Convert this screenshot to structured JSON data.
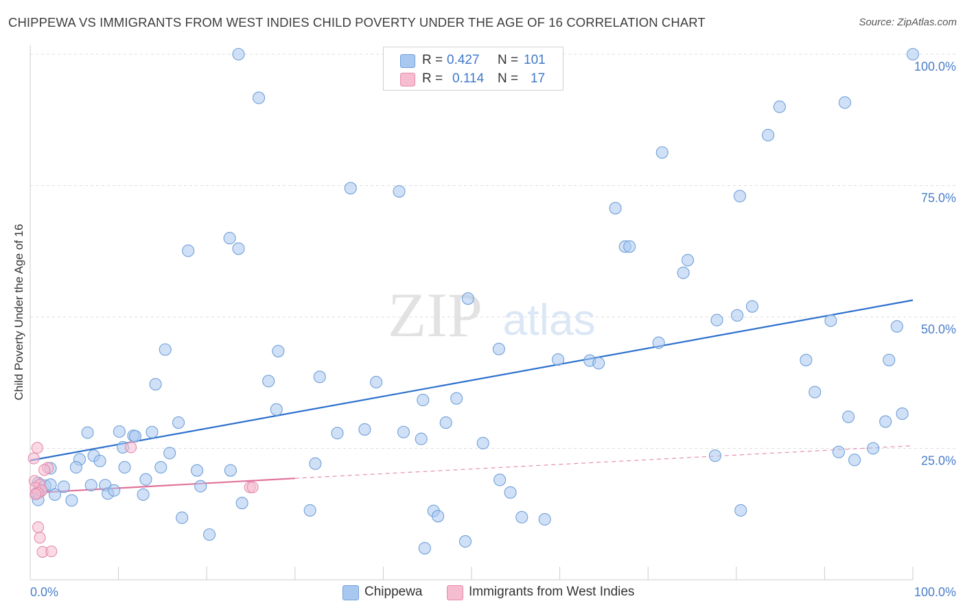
{
  "title": "CHIPPEWA VS IMMIGRANTS FROM WEST INDIES CHILD POVERTY UNDER THE AGE OF 16 CORRELATION CHART",
  "source": "Source: ZipAtlas.com",
  "watermark": {
    "zip": "ZIP",
    "atlas": "atlas"
  },
  "legend": {
    "rows": [
      {
        "r_label": "R =",
        "r_value": "0.427",
        "n_label": "N =",
        "n_value": "101"
      },
      {
        "r_label": "R =",
        "r_value": "0.114",
        "n_label": "N =",
        "n_value": "17"
      }
    ]
  },
  "bottom_legend": {
    "chippewa": "Chippewa",
    "immigrants": "Immigrants from West Indies"
  },
  "colors": {
    "chippewa_fill": "#a9c8f0",
    "chippewa_stroke": "#6f9fd8",
    "chippewa_line": "#2b6fcc",
    "immigrants_fill": "#f6bcd0",
    "immigrants_stroke": "#e68aab",
    "immigrants_line": "#e0709a",
    "axis_text": "#4a7ec9",
    "grid": "#dddddd"
  },
  "chart_data": {
    "type": "scatter",
    "title": "CHIPPEWA VS IMMIGRANTS FROM WEST INDIES CHILD POVERTY UNDER THE AGE OF 16 CORRELATION CHART",
    "xlabel": "",
    "ylabel": "Child Poverty Under the Age of 16",
    "xlim": [
      0,
      100
    ],
    "ylim": [
      0,
      100
    ],
    "x_tick_labels": [
      "0.0%",
      "100.0%"
    ],
    "y_tick_values": [
      25,
      50,
      75,
      100
    ],
    "y_tick_labels": [
      "25.0%",
      "50.0%",
      "75.0%",
      "100.0%"
    ],
    "grid": true,
    "series": [
      {
        "name": "Chippewa",
        "R": 0.427,
        "N": 101,
        "trend": {
          "x": [
            0,
            100
          ],
          "y": [
            22.7,
            53.2
          ],
          "dashed": false
        },
        "points": [
          [
            23.6,
            100
          ],
          [
            25.9,
            91.7
          ],
          [
            100,
            100
          ],
          [
            84.9,
            90
          ],
          [
            92.3,
            90.8
          ],
          [
            83.6,
            84.6
          ],
          [
            71.6,
            81.3
          ],
          [
            36.3,
            74.5
          ],
          [
            41.8,
            73.9
          ],
          [
            80.4,
            73
          ],
          [
            66.3,
            70.7
          ],
          [
            17.9,
            62.6
          ],
          [
            22.6,
            65
          ],
          [
            23.6,
            63
          ],
          [
            67.4,
            63.4
          ],
          [
            67.9,
            63.4
          ],
          [
            74.5,
            60.8
          ],
          [
            74.0,
            58.4
          ],
          [
            49.6,
            53.5
          ],
          [
            81.8,
            52
          ],
          [
            77.8,
            49.4
          ],
          [
            80.1,
            50.3
          ],
          [
            90.7,
            49.3
          ],
          [
            98.2,
            48.2
          ],
          [
            71.2,
            45.1
          ],
          [
            15.3,
            43.8
          ],
          [
            28.1,
            43.5
          ],
          [
            53.1,
            43.9
          ],
          [
            59.8,
            41.9
          ],
          [
            63.4,
            41.7
          ],
          [
            64.4,
            41.2
          ],
          [
            87.9,
            41.8
          ],
          [
            97.3,
            41.8
          ],
          [
            14.2,
            37.2
          ],
          [
            27.0,
            37.8
          ],
          [
            32.8,
            38.6
          ],
          [
            39.2,
            37.6
          ],
          [
            44.5,
            34.2
          ],
          [
            48.3,
            34.5
          ],
          [
            27.9,
            32.4
          ],
          [
            88.9,
            35.7
          ],
          [
            92.7,
            31
          ],
          [
            96.9,
            30.1
          ],
          [
            98.8,
            31.6
          ],
          [
            16.8,
            29.9
          ],
          [
            6.5,
            28
          ],
          [
            10.1,
            28.2
          ],
          [
            11.7,
            27.4
          ],
          [
            11.9,
            27.3
          ],
          [
            13.8,
            28.1
          ],
          [
            34.8,
            27.9
          ],
          [
            37.9,
            28.6
          ],
          [
            42.3,
            28.1
          ],
          [
            44.3,
            26.8
          ],
          [
            47.1,
            29.9
          ],
          [
            51.3,
            26
          ],
          [
            10.5,
            25.2
          ],
          [
            15.8,
            24.1
          ],
          [
            7.2,
            23.6
          ],
          [
            2.3,
            21.2
          ],
          [
            5.6,
            22.9
          ],
          [
            7.9,
            22.6
          ],
          [
            5.2,
            21.4
          ],
          [
            10.7,
            21.4
          ],
          [
            14.8,
            21.4
          ],
          [
            18.9,
            20.8
          ],
          [
            22.7,
            20.8
          ],
          [
            32.3,
            22.1
          ],
          [
            77.6,
            23.6
          ],
          [
            91.6,
            24.3
          ],
          [
            93.4,
            22.8
          ],
          [
            95.5,
            25
          ],
          [
            0.9,
            18.4
          ],
          [
            1.7,
            17.9
          ],
          [
            2.3,
            18.1
          ],
          [
            3.8,
            17.7
          ],
          [
            6.9,
            18
          ],
          [
            8.5,
            18
          ],
          [
            13.1,
            19.1
          ],
          [
            19.3,
            17.8
          ],
          [
            53.2,
            19
          ],
          [
            0.7,
            16.4
          ],
          [
            1.2,
            16.9
          ],
          [
            8.8,
            16.4
          ],
          [
            9.5,
            17
          ],
          [
            12.8,
            16.2
          ],
          [
            2.8,
            16.2
          ],
          [
            54.4,
            16.6
          ],
          [
            0.9,
            15.2
          ],
          [
            4.7,
            15.1
          ],
          [
            24.0,
            14.6
          ],
          [
            31.7,
            13.2
          ],
          [
            45.7,
            13.1
          ],
          [
            46.2,
            12.1
          ],
          [
            17.2,
            11.8
          ],
          [
            55.7,
            11.9
          ],
          [
            58.3,
            11.5
          ],
          [
            80.5,
            13.2
          ],
          [
            20.3,
            8.6
          ],
          [
            49.3,
            7.3
          ],
          [
            44.7,
            6
          ]
        ]
      },
      {
        "name": "Immigrants from West Indies",
        "R": 0.114,
        "N": 17,
        "trend": {
          "x": [
            0,
            30
          ],
          "y": [
            16.5,
            19.3
          ],
          "dashed": false
        },
        "trend_extension": {
          "x": [
            30,
            100
          ],
          "y": [
            19.3,
            25.5
          ],
          "dashed": true
        },
        "points": [
          [
            0.8,
            25.1
          ],
          [
            0.4,
            23.1
          ],
          [
            11.4,
            25.2
          ],
          [
            2.0,
            21.3
          ],
          [
            1.6,
            20.9
          ],
          [
            0.5,
            18.8
          ],
          [
            1.1,
            18.1
          ],
          [
            0.6,
            17.5
          ],
          [
            1.3,
            17.0
          ],
          [
            0.9,
            16.5
          ],
          [
            0.6,
            16.3
          ],
          [
            24.9,
            17.6
          ],
          [
            25.2,
            17.6
          ],
          [
            0.9,
            10.0
          ],
          [
            1.1,
            8.0
          ],
          [
            1.4,
            5.3
          ],
          [
            2.4,
            5.4
          ]
        ]
      }
    ]
  }
}
